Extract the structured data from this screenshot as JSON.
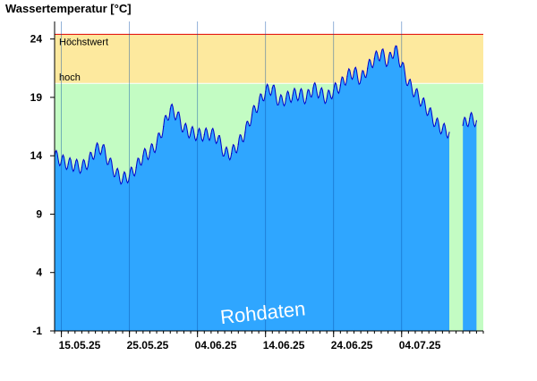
{
  "chart_data": {
    "type": "area",
    "title": "Wassertemperatur [°C]",
    "ylim": [
      -1,
      25.5
    ],
    "yticks": [
      -1,
      4,
      9,
      14,
      19,
      24
    ],
    "x_start": "2025-05-14",
    "x_end": "2025-07-16",
    "xticks": [
      {
        "date": "2025-05-15",
        "label": "15.05.25"
      },
      {
        "date": "2025-05-25",
        "label": "25.05.25"
      },
      {
        "date": "2025-06-04",
        "label": "04.06.25"
      },
      {
        "date": "2025-06-14",
        "label": "14.06.25"
      },
      {
        "date": "2025-06-24",
        "label": "24.06.25"
      },
      {
        "date": "2025-07-04",
        "label": "04.07.25"
      }
    ],
    "bands": [
      {
        "label": "Höchstwert",
        "from": 20.2,
        "to": 24.4,
        "color": "#fde99e"
      },
      {
        "label": "hoch",
        "from": -1,
        "to": 20.2,
        "color": "#c3fcc3"
      }
    ],
    "max_line": {
      "value": 24.4,
      "color": "#e00000"
    },
    "series": [
      {
        "color_fill": "#2fa6ff",
        "color_line": "#0000cc",
        "points": [
          [
            "2025-05-14",
            14.0
          ],
          [
            "2025-05-15",
            13.6
          ],
          [
            "2025-05-16",
            13.3
          ],
          [
            "2025-05-17",
            13.2
          ],
          [
            "2025-05-18",
            13.0
          ],
          [
            "2025-05-19",
            13.5
          ],
          [
            "2025-05-20",
            14.5
          ],
          [
            "2025-05-21",
            14.7
          ],
          [
            "2025-05-22",
            13.5
          ],
          [
            "2025-05-23",
            12.5
          ],
          [
            "2025-05-24",
            12.0
          ],
          [
            "2025-05-25",
            12.3
          ],
          [
            "2025-05-26",
            13.0
          ],
          [
            "2025-05-27",
            14.0
          ],
          [
            "2025-05-28",
            14.3
          ],
          [
            "2025-05-29",
            15.0
          ],
          [
            "2025-05-30",
            16.5
          ],
          [
            "2025-05-31",
            18.0
          ],
          [
            "2025-06-01",
            17.5
          ],
          [
            "2025-06-02",
            16.3
          ],
          [
            "2025-06-03",
            16.0
          ],
          [
            "2025-06-04",
            15.8
          ],
          [
            "2025-06-05",
            15.8
          ],
          [
            "2025-06-06",
            15.9
          ],
          [
            "2025-06-07",
            15.5
          ],
          [
            "2025-06-08",
            14.2
          ],
          [
            "2025-06-09",
            14.2
          ],
          [
            "2025-06-10",
            15.0
          ],
          [
            "2025-06-11",
            16.0
          ],
          [
            "2025-06-12",
            17.5
          ],
          [
            "2025-06-13",
            18.5
          ],
          [
            "2025-06-14",
            19.5
          ],
          [
            "2025-06-15",
            19.8
          ],
          [
            "2025-06-16",
            18.6
          ],
          [
            "2025-06-17",
            18.9
          ],
          [
            "2025-06-18",
            19.2
          ],
          [
            "2025-06-19",
            19.3
          ],
          [
            "2025-06-20",
            18.9
          ],
          [
            "2025-06-21",
            19.8
          ],
          [
            "2025-06-22",
            19.4
          ],
          [
            "2025-06-23",
            18.9
          ],
          [
            "2025-06-24",
            19.6
          ],
          [
            "2025-06-25",
            20.0
          ],
          [
            "2025-06-26",
            20.8
          ],
          [
            "2025-06-27",
            21.2
          ],
          [
            "2025-06-28",
            20.5
          ],
          [
            "2025-06-29",
            21.5
          ],
          [
            "2025-06-30",
            22.3
          ],
          [
            "2025-07-01",
            22.8
          ],
          [
            "2025-07-02",
            22.0
          ],
          [
            "2025-07-03",
            23.2
          ],
          [
            "2025-07-04",
            21.8
          ],
          [
            "2025-07-05",
            20.2
          ],
          [
            "2025-07-06",
            19.4
          ],
          [
            "2025-07-07",
            18.6
          ],
          [
            "2025-07-08",
            17.8
          ],
          [
            "2025-07-09",
            16.8
          ],
          [
            "2025-07-10",
            16.3
          ],
          [
            "2025-07-11",
            16.0
          ],
          [
            "2025-07-12",
            null
          ],
          [
            "2025-07-13",
            16.6
          ],
          [
            "2025-07-14",
            17.2
          ],
          [
            "2025-07-15",
            17.0
          ],
          [
            "2025-07-16",
            null
          ]
        ]
      }
    ],
    "watermark": "Rohdaten"
  }
}
